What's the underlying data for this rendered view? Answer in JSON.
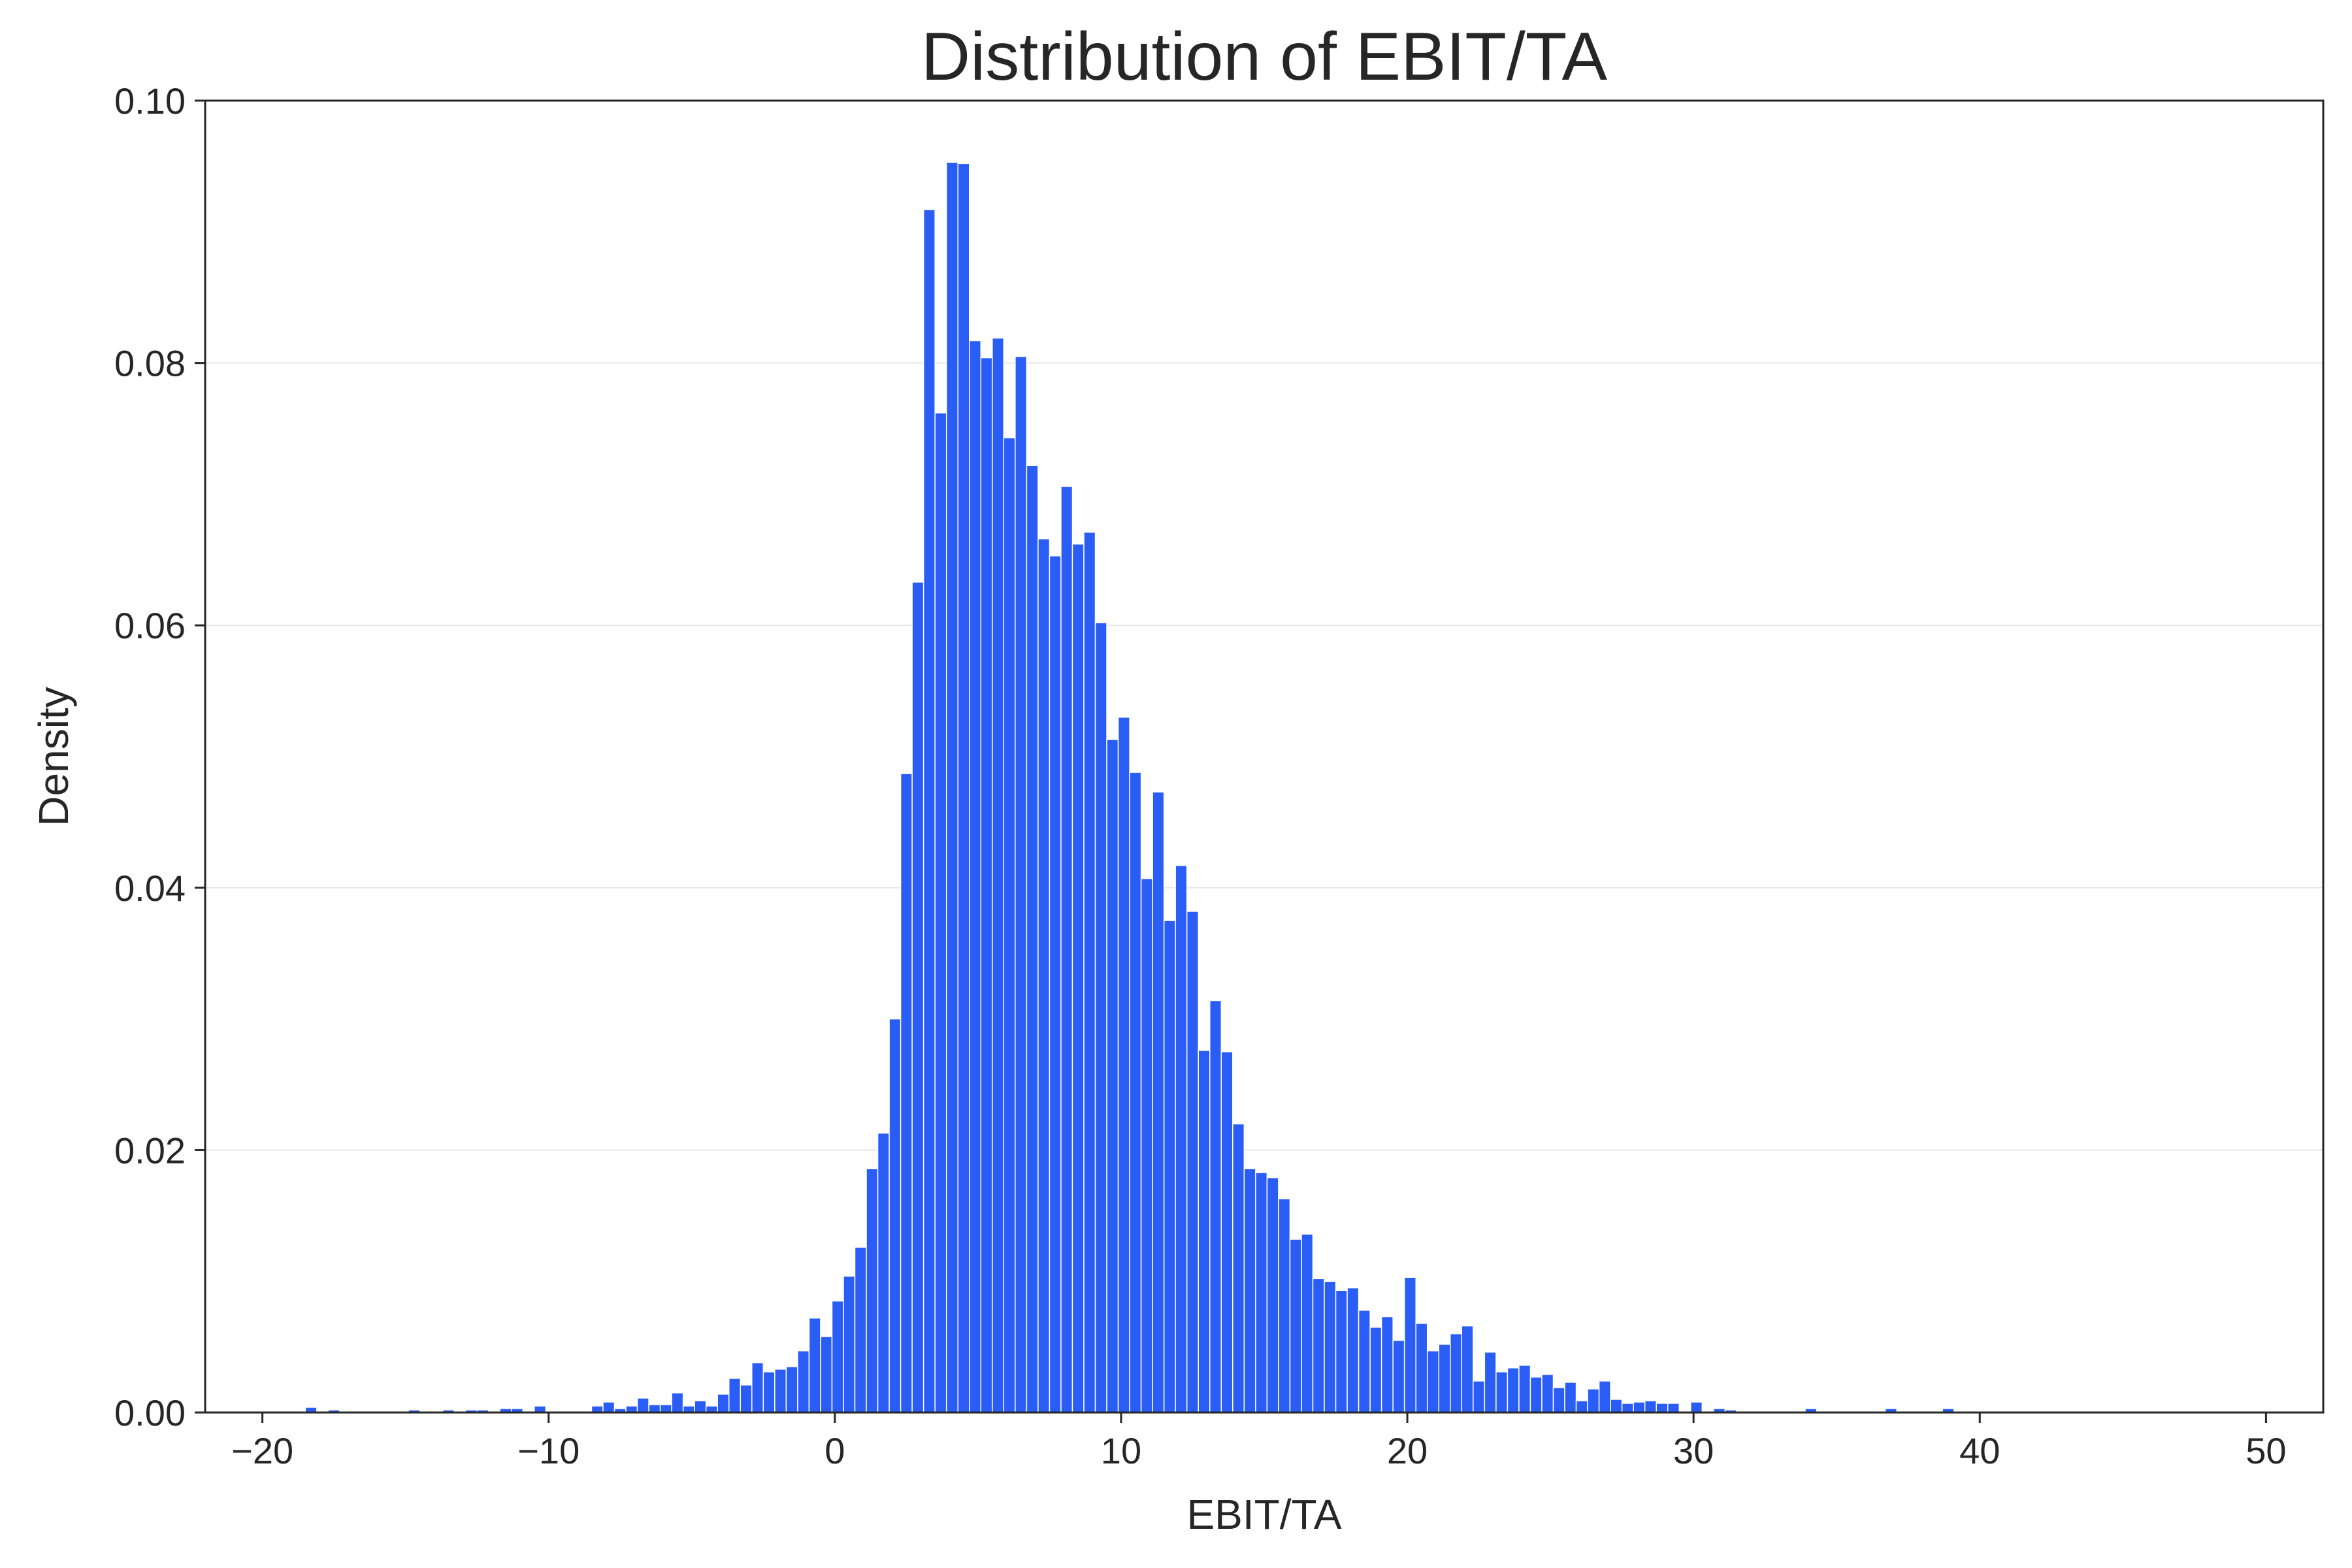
{
  "chart_data": {
    "type": "bar",
    "title": "Distribution of EBIT/TA",
    "xlabel": "EBIT/TA",
    "ylabel": "Density",
    "xlim": [
      -22,
      52
    ],
    "ylim": [
      0,
      0.1
    ],
    "xticks": [
      -20,
      -10,
      0,
      10,
      20,
      30,
      40,
      50
    ],
    "xtick_labels": [
      "−20",
      "−10",
      "0",
      "10",
      "20",
      "30",
      "40",
      "50"
    ],
    "yticks": [
      0,
      0.02,
      0.04,
      0.06,
      0.08,
      0.1
    ],
    "ytick_labels": [
      "0.00",
      "0.02",
      "0.04",
      "0.06",
      "0.08",
      "0.10"
    ],
    "grid": "horizontal",
    "bin_start": -18.9,
    "bin_width": 0.4,
    "values": [
      0.0,
      0.0004,
      0.0,
      0.0002,
      0.0,
      0.0,
      0.0,
      0.0,
      0.0,
      0.0,
      0.0002,
      0.0,
      0.0,
      0.0002,
      0.0,
      0.0002,
      0.0002,
      0.0,
      0.0003,
      0.0003,
      0.0,
      0.0005,
      0.0,
      0.0,
      0.0,
      0.0,
      0.0005,
      0.0008,
      0.0003,
      0.0005,
      0.0011,
      0.0006,
      0.0006,
      0.0015,
      0.0005,
      0.0009,
      0.0005,
      0.0014,
      0.0026,
      0.0021,
      0.0038,
      0.0031,
      0.0033,
      0.0035,
      0.0047,
      0.0072,
      0.0058,
      0.0085,
      0.0104,
      0.0126,
      0.0186,
      0.0213,
      0.03,
      0.0487,
      0.0633,
      0.0917,
      0.0762,
      0.0953,
      0.0952,
      0.0817,
      0.0804,
      0.0819,
      0.0743,
      0.0805,
      0.0722,
      0.0666,
      0.0653,
      0.0706,
      0.0662,
      0.0671,
      0.0602,
      0.0513,
      0.053,
      0.0488,
      0.0407,
      0.0473,
      0.0375,
      0.0417,
      0.0382,
      0.0276,
      0.0314,
      0.0275,
      0.022,
      0.0186,
      0.0183,
      0.0179,
      0.0163,
      0.0132,
      0.0136,
      0.0102,
      0.01,
      0.0093,
      0.0095,
      0.0078,
      0.0065,
      0.0073,
      0.0055,
      0.0103,
      0.0068,
      0.0047,
      0.0052,
      0.006,
      0.0066,
      0.0024,
      0.0046,
      0.0031,
      0.0034,
      0.0036,
      0.0027,
      0.0029,
      0.0019,
      0.0023,
      0.0009,
      0.0018,
      0.0024,
      0.001,
      0.0007,
      0.0008,
      0.0009,
      0.0007,
      0.0007,
      0.0,
      0.0008,
      0.0,
      0.0003,
      0.0002,
      0.0001,
      0.0,
      0.0001,
      0.0001,
      0.0001,
      0.0,
      0.0003,
      0.0,
      0.0,
      0.0001,
      0.0,
      0.0,
      0.0,
      0.0003,
      0.0,
      0.0,
      0.0,
      0.0,
      0.0003,
      0.0,
      0.0,
      0.0,
      0.0,
      0.0,
      0.0,
      0.0,
      0.0,
      0.0001,
      0.0001,
      0.0
    ],
    "bar_color": "#2a5cf6",
    "grid_color": "#e6e6e6",
    "axis_color": "#262626"
  }
}
